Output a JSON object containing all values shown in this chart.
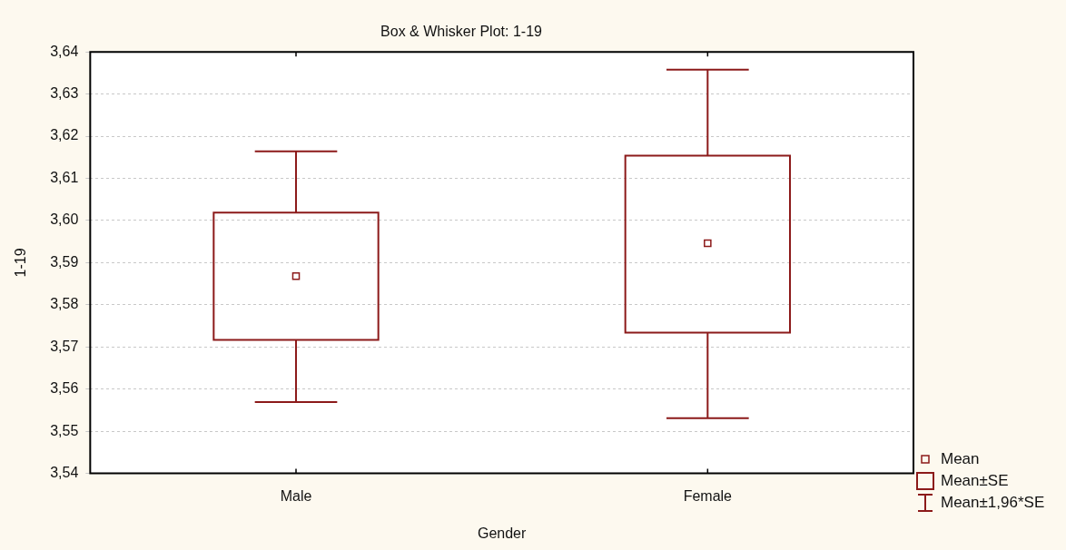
{
  "chart_data": {
    "type": "box",
    "title": "Box & Whisker Plot: 1-19",
    "xlabel": "Gender",
    "ylabel": "1-19",
    "categories": [
      "Male",
      "Female"
    ],
    "color": "#8c1a1a",
    "marker": "square",
    "boxes": [
      {
        "low": 3.5569,
        "q1": 3.5717,
        "q3": 3.6019,
        "high": 3.6164,
        "mean": 3.5868
      },
      {
        "low": 3.5531,
        "q1": 3.5734,
        "q3": 3.6154,
        "high": 3.6358,
        "mean": 3.5946
      }
    ],
    "ylim": [
      3.54,
      3.64
    ],
    "yticks": [
      {
        "value": 3.54,
        "label": "3,54"
      },
      {
        "value": 3.55,
        "label": "3,55"
      },
      {
        "value": 3.56,
        "label": "3,56"
      },
      {
        "value": 3.57,
        "label": "3,57"
      },
      {
        "value": 3.58,
        "label": "3,58"
      },
      {
        "value": 3.59,
        "label": "3,59"
      },
      {
        "value": 3.6,
        "label": "3,60"
      },
      {
        "value": 3.61,
        "label": "3,61"
      },
      {
        "value": 3.62,
        "label": "3,62"
      },
      {
        "value": 3.63,
        "label": "3,63"
      },
      {
        "value": 3.64,
        "label": "3,64"
      }
    ],
    "grid": "y",
    "annotations": [
      "Mean",
      "Mean±SE",
      "Mean±1,96*SE"
    ]
  }
}
